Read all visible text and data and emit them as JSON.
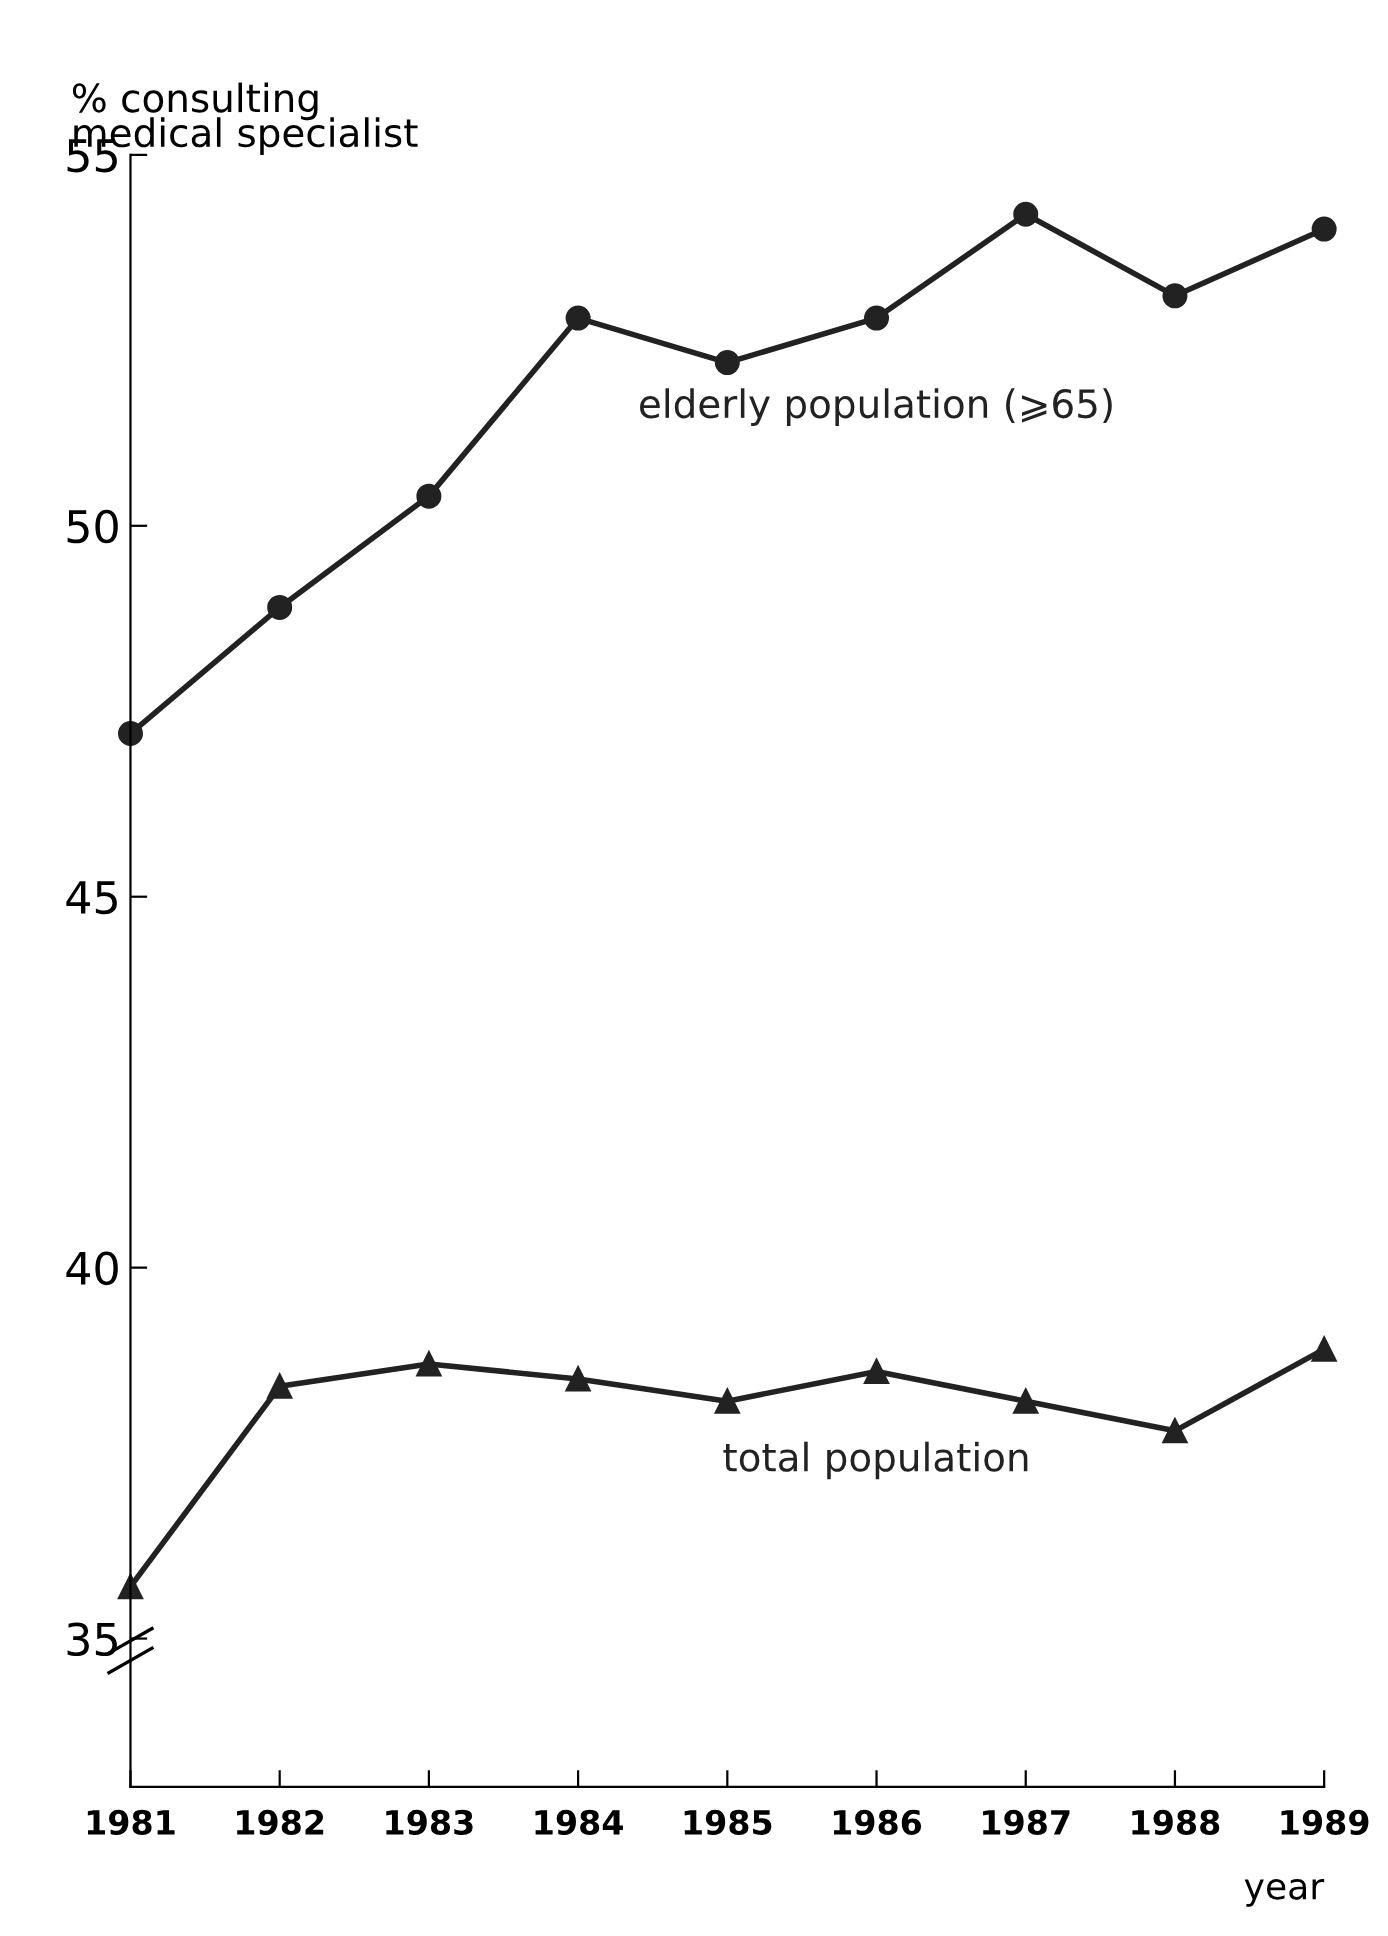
{
  "chart_data": {
    "type": "line",
    "ylabel": "% consulting\nmedical specialist",
    "xlabel": "year",
    "x": [
      1981,
      1982,
      1983,
      1984,
      1985,
      1986,
      1987,
      1988,
      1989
    ],
    "series": [
      {
        "name": "elderly population (⩾65)",
        "color": "#222222",
        "marker": "circle",
        "values": [
          47.2,
          48.9,
          50.4,
          52.8,
          52.2,
          52.8,
          54.2,
          53.1,
          54.0
        ]
      },
      {
        "name": "total population",
        "color": "#222222",
        "marker": "triangle",
        "values": [
          35.7,
          38.4,
          38.7,
          38.5,
          38.2,
          38.6,
          38.2,
          37.8,
          38.9
        ]
      }
    ],
    "xlim": [
      1981,
      1989
    ],
    "xticks": [
      1981,
      1982,
      1983,
      1984,
      1985,
      1986,
      1987,
      1988,
      1989
    ],
    "ylim": [
      33,
      55
    ],
    "yticks": [
      35,
      40,
      45,
      50,
      55
    ],
    "grid": false,
    "legend": false,
    "line_style": "solid"
  }
}
